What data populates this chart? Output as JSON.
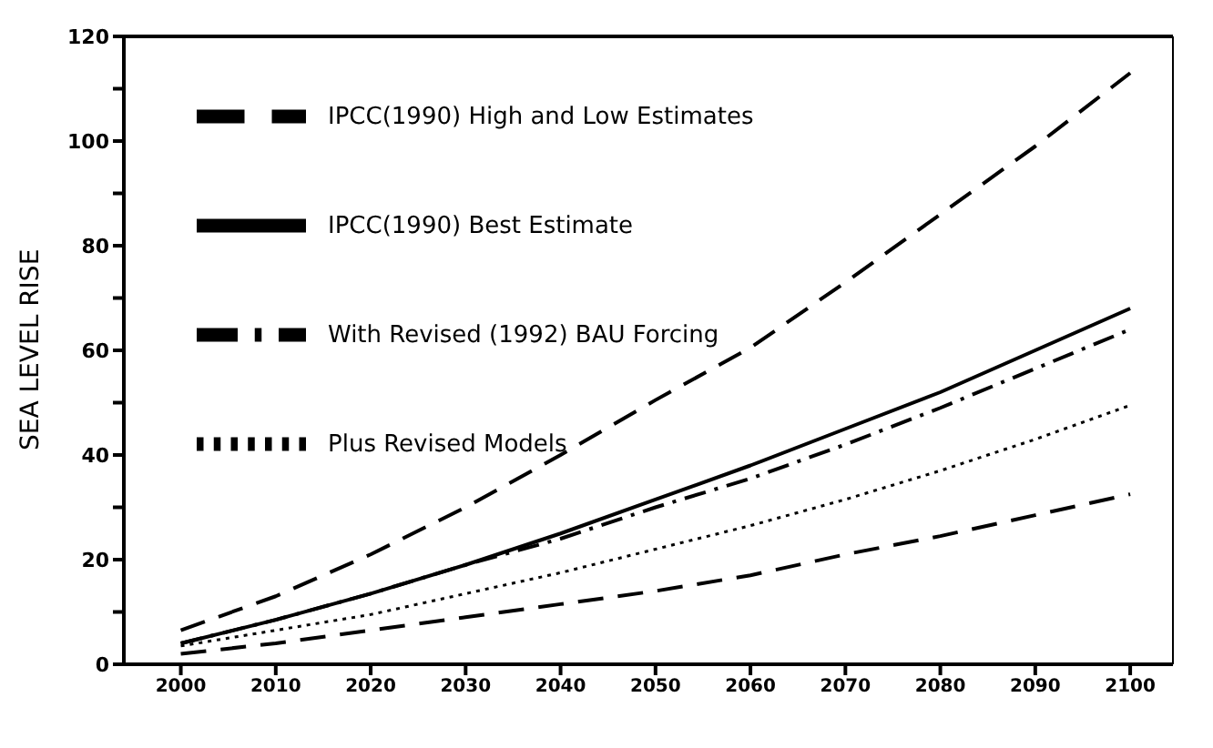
{
  "chart_data": {
    "type": "line",
    "ylabel": "SEA LEVEL RISE",
    "x": [
      2000,
      2010,
      2020,
      2030,
      2040,
      2050,
      2060,
      2070,
      2080,
      2090,
      2100
    ],
    "xlim": [
      1994,
      2104.5
    ],
    "xticks": [
      2000,
      2010,
      2020,
      2030,
      2040,
      2050,
      2060,
      2070,
      2080,
      2090,
      2100
    ],
    "ylim": [
      0,
      120
    ],
    "yticks": [
      0,
      {
        "value": 10,
        "label": null
      },
      20,
      {
        "value": 30,
        "label": null
      },
      40,
      {
        "value": 50,
        "label": null
      },
      60,
      {
        "value": 70,
        "label": null
      },
      80,
      {
        "value": 90,
        "label": null
      },
      100,
      {
        "value": 110,
        "label": null
      },
      120
    ],
    "grid": false,
    "legend": "top left",
    "marker": "none",
    "series": [
      {
        "name": "IPCC(1990) High and Low Estimates",
        "color": "#000000",
        "line_style": "dashed",
        "values": [
          6.5,
          13,
          21,
          30,
          40,
          50.5,
          60.5,
          73,
          86,
          99,
          113
        ]
      },
      {
        "name": "IPCC(1990) Best Estimate",
        "color": "#000000",
        "line_style": "solid",
        "values": [
          4,
          8.5,
          13.5,
          19,
          25,
          31.5,
          38,
          45,
          52,
          60,
          68
        ]
      },
      {
        "name": "With Revised (1992) BAU Forcing",
        "color": "#000000",
        "line_style": "dashdot",
        "values": [
          4,
          8.5,
          13.5,
          19,
          24,
          30,
          35.5,
          42,
          49,
          56.5,
          64
        ]
      },
      {
        "name": "Plus Revised Models",
        "color": "#000000",
        "line_style": "dotted",
        "values": [
          3.5,
          6.5,
          9.5,
          13.5,
          17.5,
          22,
          26.5,
          31.5,
          37,
          43,
          49.5
        ]
      },
      {
        "color": "#000000",
        "line_style": "dashed",
        "values": [
          2,
          4,
          6.5,
          9,
          11.5,
          14,
          17,
          21,
          24.5,
          28.5,
          32.5
        ]
      }
    ]
  }
}
